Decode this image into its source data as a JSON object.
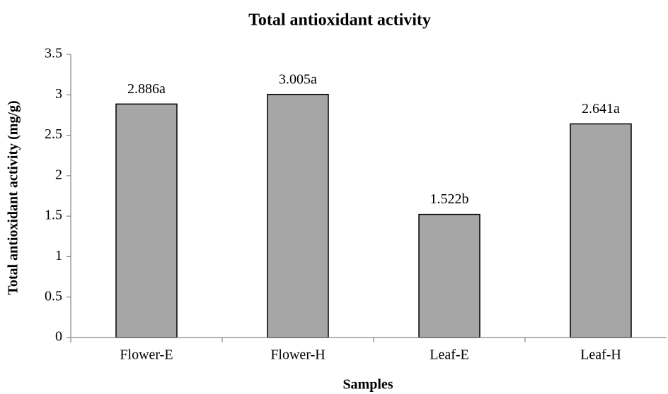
{
  "chart_data": {
    "type": "bar",
    "title": "Total antioxidant activity",
    "x_label": "Samples",
    "y_label": "Total antioxidant activity (mg/g)",
    "categories": [
      "Flower-E",
      "Flower-H",
      "Leaf-E",
      "Leaf-H"
    ],
    "values": [
      2.886,
      3.005,
      1.522,
      2.641
    ],
    "value_labels": [
      "2.886a",
      "3.005a",
      "1.522b",
      "2.641a"
    ],
    "color": "#a6a6a6",
    "ylim": [
      0,
      3.5
    ],
    "yticks": [
      0,
      0.5,
      1,
      1.5,
      2,
      2.5,
      3,
      3.5
    ],
    "grid": false
  }
}
